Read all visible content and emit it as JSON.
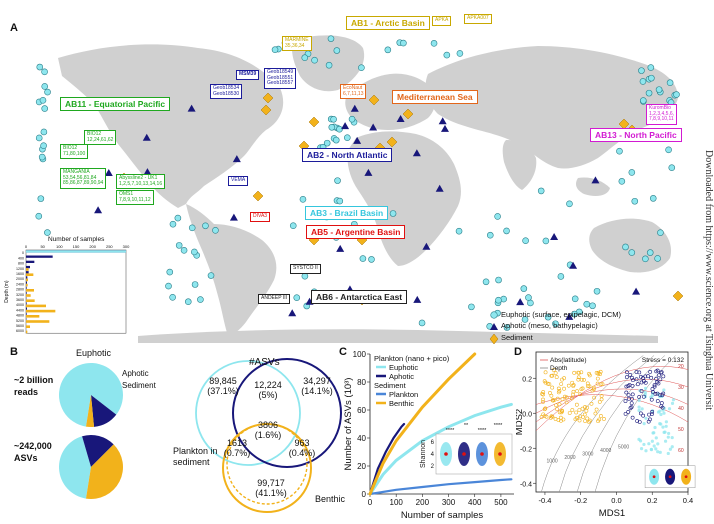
{
  "panels": {
    "a": "A",
    "b": "B",
    "c": "C",
    "d": "D"
  },
  "side_text": "Downloaded from https://www.science.org at Tsinghua Universit",
  "colors": {
    "euphotic": "#8ee6ee",
    "aphotic": "#18177a",
    "sediment": "#f2b21b",
    "land": "#cfcfcf",
    "ab1": "#c8a800",
    "ab2": "#1c1c9a",
    "ab3": "#35c6dd",
    "ab5": "#e01010",
    "ab6": "#222222",
    "ab11": "#1fa81f",
    "ab13": "#d21ad2",
    "med": "#e2661a"
  },
  "basins": [
    {
      "key": "ab1",
      "label": "AB1 - Arctic Basin"
    },
    {
      "key": "ab11",
      "label": "AB11 - Equatorial Pacific"
    },
    {
      "key": "med",
      "label": "Mediterranean Sea"
    },
    {
      "key": "ab2",
      "label": "AB2 - North Atlantic"
    },
    {
      "key": "ab13",
      "label": "AB13 - North Pacific"
    },
    {
      "key": "ab3",
      "label": "AB3 - Brazil Basin"
    },
    {
      "key": "ab5",
      "label": "AB5 - Argentine Basin"
    },
    {
      "key": "ab6",
      "label": "AB6 - Antarctica East"
    }
  ],
  "cruises": [
    {
      "text": "MARMINE\n35,36,34",
      "key": "ab1"
    },
    {
      "text": "APKA",
      "key": "ab1"
    },
    {
      "text": "APKA007",
      "key": "ab1"
    },
    {
      "text": "MSM39",
      "key": "ab2"
    },
    {
      "text": "Geob18534\nGeob18530",
      "key": "ab2"
    },
    {
      "text": "Geob18549\nGeob18551\nGeob18557",
      "key": "ab2"
    },
    {
      "text": "EcoNaut\n6,7,11,13",
      "key": "med"
    },
    {
      "text": "BIO12\n12,24,61,62",
      "key": "ab11"
    },
    {
      "text": "BIO12\n71,80,100",
      "key": "ab11"
    },
    {
      "text": "MANGANIA\n53,54,56,81,84\n85,86,87,89,90,94",
      "key": "ab11"
    },
    {
      "text": "Abyssline2 - UK1\n1,2,5,7,10,13,14,16",
      "key": "ab11"
    },
    {
      "text": "OMS1\n7,8,9,10,11,12",
      "key": "ab11"
    },
    {
      "text": "KuromBio\n1,2,3,4,5,6,\n7,8,9,10,11",
      "key": "ab13"
    },
    {
      "text": "DIVA3",
      "key": "ab5"
    },
    {
      "text": "SYSTCO II",
      "key": "ab6"
    },
    {
      "text": "ANDEEP III",
      "key": "ab6"
    },
    {
      "text": "VEMA",
      "key": "ab2"
    }
  ],
  "map_legend": [
    {
      "label": "Euphotic (surface, epipelagic, DCM)",
      "shape": "circle-icon"
    },
    {
      "label": "Aphotic (meso, bathypelagic)",
      "shape": "triangle-icon"
    },
    {
      "label": "Sediment",
      "shape": "diamond-icon"
    }
  ],
  "depth_hist": {
    "title": "Number of samples",
    "ticks_x": [
      "0",
      "50",
      "100",
      "150",
      "200",
      "250",
      "300"
    ],
    "ylabel": "Depth (m)",
    "depths": [
      "0",
      "400",
      "800",
      "1200",
      "1600",
      "2000",
      "2400",
      "2800",
      "3200",
      "3600",
      "4000",
      "4400",
      "4800",
      "5200",
      "5600",
      "6000"
    ],
    "plankton": [
      300,
      80,
      25,
      12,
      8,
      4,
      3,
      2,
      2,
      1,
      2,
      3,
      2,
      1,
      0,
      0
    ],
    "sediment": [
      0,
      0,
      0,
      8,
      22,
      6,
      5,
      24,
      14,
      26,
      60,
      88,
      40,
      70,
      12,
      4
    ]
  },
  "panel_b": {
    "euphotic_label": "Euphotic",
    "aphotic_label": "Aphotic",
    "sediment_label": "Sediment",
    "reads_label": "~2 billion\nreads",
    "asvs_label": "~242,000\nASVs",
    "pie_reads": [
      {
        "name": "euphotic",
        "value": 0.83
      },
      {
        "name": "aphotic",
        "value": 0.13
      },
      {
        "name": "sediment",
        "value": 0.04
      }
    ],
    "pie_asvs": [
      {
        "name": "euphotic",
        "value": 0.43
      },
      {
        "name": "aphotic",
        "value": 0.17
      },
      {
        "name": "sediment",
        "value": 0.4
      }
    ],
    "venn_title": "#ASVs",
    "venn": [
      {
        "count": "89,845",
        "pct": "(37.1%)"
      },
      {
        "count": "12,224",
        "pct": "(5%)"
      },
      {
        "count": "34,297",
        "pct": "(14.1%)"
      },
      {
        "count": "3806",
        "pct": "(1.6%)"
      },
      {
        "count": "1613",
        "pct": "(0.7%)"
      },
      {
        "count": "963",
        "pct": "(0.4%)"
      },
      {
        "count": "99,717",
        "pct": "(41.1%)"
      }
    ],
    "plankton_in_sediment": "Plankton in\nsediment",
    "benthic_label": "Benthic"
  },
  "chart_data": [
    {
      "type": "line",
      "title": "",
      "xlabel": "Number of samples",
      "ylabel": "Number of ASVs (10³)",
      "xlim": [
        0,
        550
      ],
      "ylim": [
        0,
        100
      ],
      "xticks": [
        0,
        100,
        200,
        300,
        400,
        500
      ],
      "yticks": [
        0,
        20,
        40,
        60,
        80,
        100
      ],
      "legend_groups": [
        {
          "title": "Plankton (nano + pico)",
          "items": [
            "Euphotic",
            "Aphotic"
          ]
        },
        {
          "title": "Sediment",
          "items": [
            "Plankton",
            "Benthic"
          ]
        }
      ],
      "series": [
        {
          "name": "Euphotic",
          "x": [
            0,
            50,
            100,
            200,
            300,
            400,
            500,
            540
          ],
          "y": [
            0,
            14,
            24,
            38,
            48,
            56,
            62,
            64
          ]
        },
        {
          "name": "Aphotic",
          "x": [
            0,
            30,
            60,
            90,
            120,
            130
          ],
          "y": [
            0,
            18,
            30,
            40,
            48,
            50
          ]
        },
        {
          "name": "Plankton",
          "x": [
            0,
            100,
            200,
            300,
            400,
            500,
            540
          ],
          "y": [
            0,
            3,
            5,
            7,
            8.5,
            10,
            10.5
          ]
        },
        {
          "name": "Benthic",
          "x": [
            0,
            50,
            100,
            200,
            300,
            400
          ],
          "y": [
            0,
            22,
            38,
            62,
            82,
            100
          ]
        }
      ],
      "inset": {
        "ylabel": "Shannon",
        "yticks": [
          "2",
          "4",
          "6"
        ],
        "signif": [
          "****",
          "**",
          "****",
          "****"
        ]
      }
    },
    {
      "type": "scatter",
      "title": "",
      "xlabel": "MDS1",
      "ylabel": "MDS2",
      "xlim": [
        -0.45,
        0.4
      ],
      "ylim": [
        -0.45,
        0.35
      ],
      "xticks": [
        -0.4,
        -0.2,
        0.0,
        0.2,
        0.4
      ],
      "yticks": [
        -0.4,
        -0.2,
        0.0,
        0.2
      ],
      "stress": "Stress = 0.132",
      "legend": [
        "Abs(latitude)",
        "Depth"
      ],
      "contours_depth": [
        "1000",
        "2000",
        "3000",
        "4000",
        "5000"
      ],
      "contours_lat": [
        "20",
        "30",
        "40",
        "50",
        "60"
      ]
    }
  ]
}
